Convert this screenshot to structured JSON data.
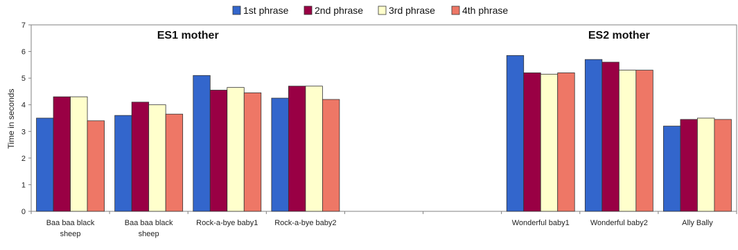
{
  "chart_data": {
    "type": "bar",
    "ylabel": "Time in seconds",
    "ylim": [
      0,
      7
    ],
    "yticks": [
      0,
      1,
      2,
      3,
      4,
      5,
      6,
      7
    ],
    "grid": true,
    "legend": "top",
    "groups": [
      {
        "title": "ES1 mother",
        "categories": [
          "Baa baa black sheep",
          "Baa baa black sheep",
          "Rock-a-bye baby1",
          "Rock-a-bye baby2"
        ]
      },
      {
        "title": "ES2 mother",
        "categories": [
          "Wonderful baby1",
          "Wonderful baby2",
          "Ally Bally"
        ]
      }
    ],
    "categories": [
      "Baa baa black sheep",
      "Baa baa black sheep",
      "Rock-a-bye baby1",
      "Rock-a-bye baby2",
      "",
      "",
      "Wonderful baby1",
      "Wonderful baby2",
      "Ally Bally"
    ],
    "series": [
      {
        "name": "1st phrase",
        "color": "#3366cc",
        "values": [
          3.5,
          3.6,
          5.1,
          4.25,
          null,
          null,
          5.85,
          5.7,
          3.2
        ]
      },
      {
        "name": "2nd phrase",
        "color": "#990044",
        "values": [
          4.3,
          4.1,
          4.55,
          4.7,
          null,
          null,
          5.2,
          5.6,
          3.45
        ]
      },
      {
        "name": "3rd phrase",
        "color": "#ffffcc",
        "values": [
          4.3,
          4.0,
          4.65,
          4.7,
          null,
          null,
          5.15,
          5.3,
          3.5
        ]
      },
      {
        "name": "4th phrase",
        "color": "#ee7766",
        "values": [
          3.4,
          3.65,
          4.45,
          4.2,
          null,
          null,
          5.2,
          5.3,
          3.45
        ]
      }
    ]
  }
}
